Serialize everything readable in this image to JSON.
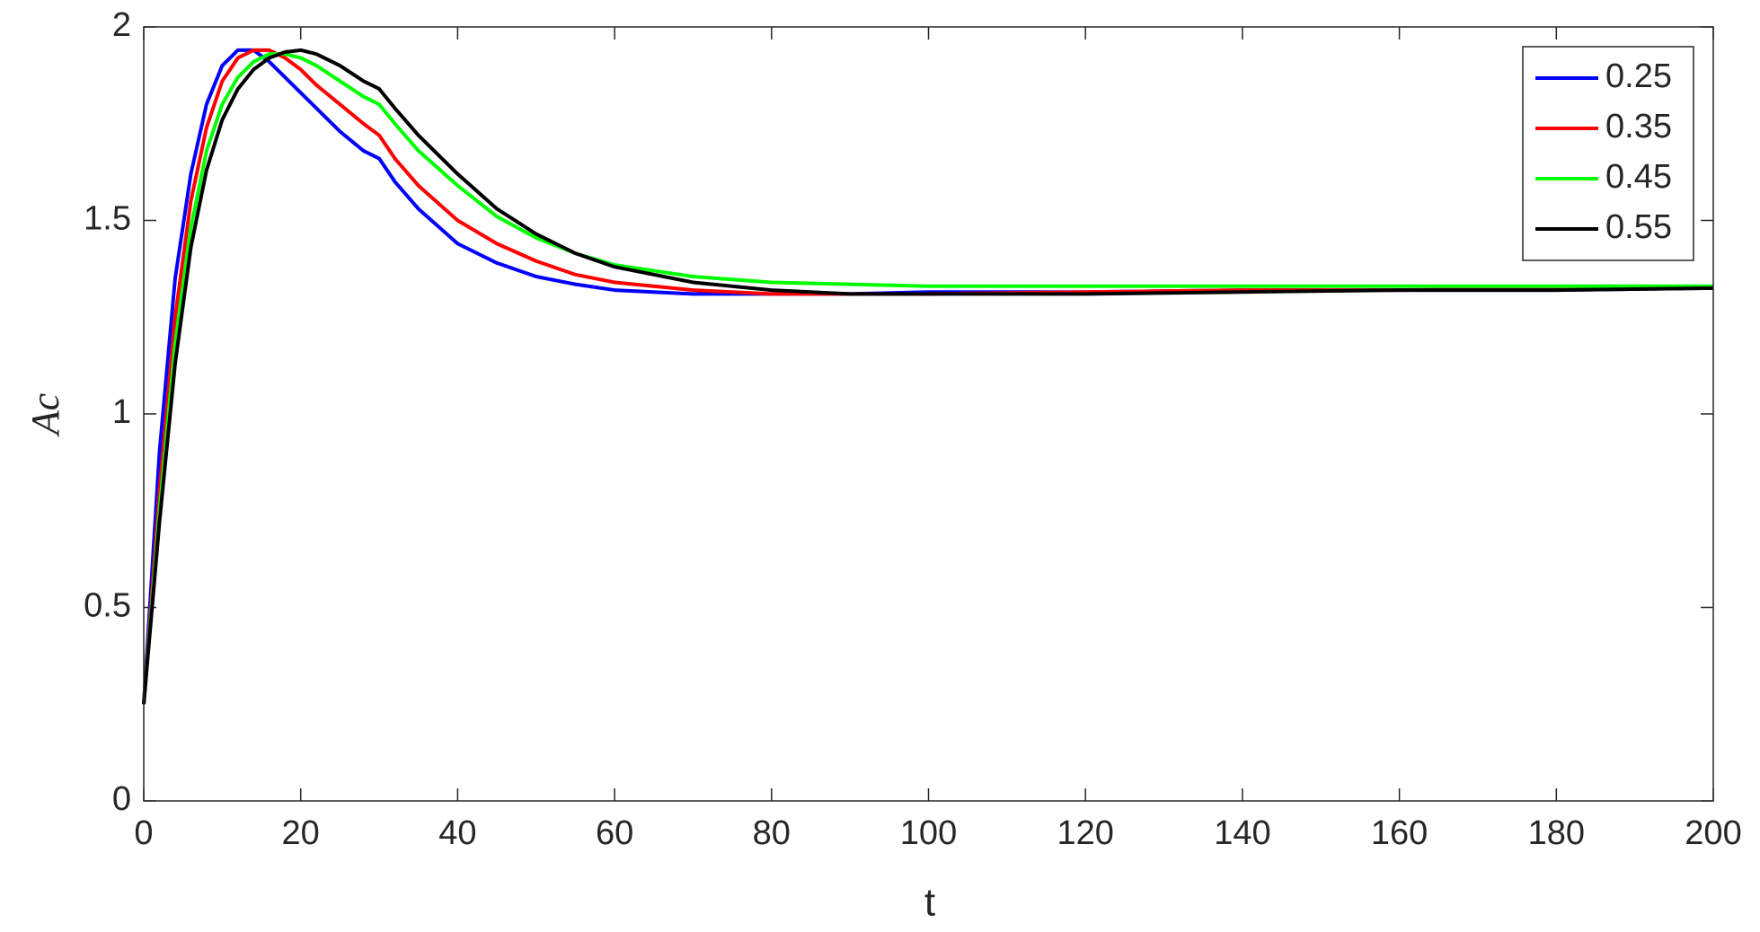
{
  "chart_data": {
    "type": "line",
    "x_label": "t",
    "y_label": "Ac",
    "x": [
      0,
      2,
      4,
      6,
      8,
      10,
      12,
      14,
      16,
      18,
      20,
      22,
      25,
      28,
      30,
      32,
      35,
      40,
      45,
      50,
      55,
      60,
      70,
      80,
      90,
      100,
      120,
      140,
      160,
      180,
      200
    ],
    "series": [
      {
        "name": "0.25",
        "color": "#0000ff",
        "values": [
          0.25,
          0.9,
          1.35,
          1.62,
          1.8,
          1.9,
          1.94,
          1.94,
          1.91,
          1.87,
          1.83,
          1.79,
          1.73,
          1.68,
          1.66,
          1.6,
          1.53,
          1.44,
          1.39,
          1.355,
          1.335,
          1.32,
          1.31,
          1.31,
          1.31,
          1.315,
          1.315,
          1.32,
          1.32,
          1.32,
          1.325
        ]
      },
      {
        "name": "0.35",
        "color": "#ff0000",
        "values": [
          0.25,
          0.8,
          1.25,
          1.55,
          1.74,
          1.86,
          1.92,
          1.94,
          1.94,
          1.92,
          1.89,
          1.85,
          1.8,
          1.75,
          1.72,
          1.66,
          1.59,
          1.5,
          1.44,
          1.395,
          1.36,
          1.34,
          1.32,
          1.31,
          1.31,
          1.31,
          1.315,
          1.32,
          1.32,
          1.325,
          1.325
        ]
      },
      {
        "name": "0.45",
        "color": "#00ff00",
        "values": [
          0.25,
          0.75,
          1.18,
          1.48,
          1.68,
          1.8,
          1.87,
          1.91,
          1.93,
          1.93,
          1.92,
          1.9,
          1.86,
          1.82,
          1.8,
          1.75,
          1.68,
          1.59,
          1.51,
          1.455,
          1.415,
          1.385,
          1.355,
          1.34,
          1.335,
          1.33,
          1.33,
          1.33,
          1.33,
          1.33,
          1.33
        ]
      },
      {
        "name": "0.55",
        "color": "#000000",
        "values": [
          0.25,
          0.72,
          1.13,
          1.43,
          1.63,
          1.76,
          1.84,
          1.89,
          1.92,
          1.935,
          1.94,
          1.93,
          1.9,
          1.86,
          1.84,
          1.79,
          1.72,
          1.62,
          1.53,
          1.465,
          1.415,
          1.38,
          1.34,
          1.32,
          1.31,
          1.31,
          1.31,
          1.315,
          1.32,
          1.32,
          1.325
        ]
      }
    ],
    "xlim": [
      0,
      200
    ],
    "xticks": [
      0,
      20,
      40,
      60,
      80,
      100,
      120,
      140,
      160,
      180,
      200
    ],
    "ylim": [
      0,
      2
    ],
    "yticks": [
      0,
      0.5,
      1,
      1.5,
      2
    ],
    "legend": "northeast"
  }
}
